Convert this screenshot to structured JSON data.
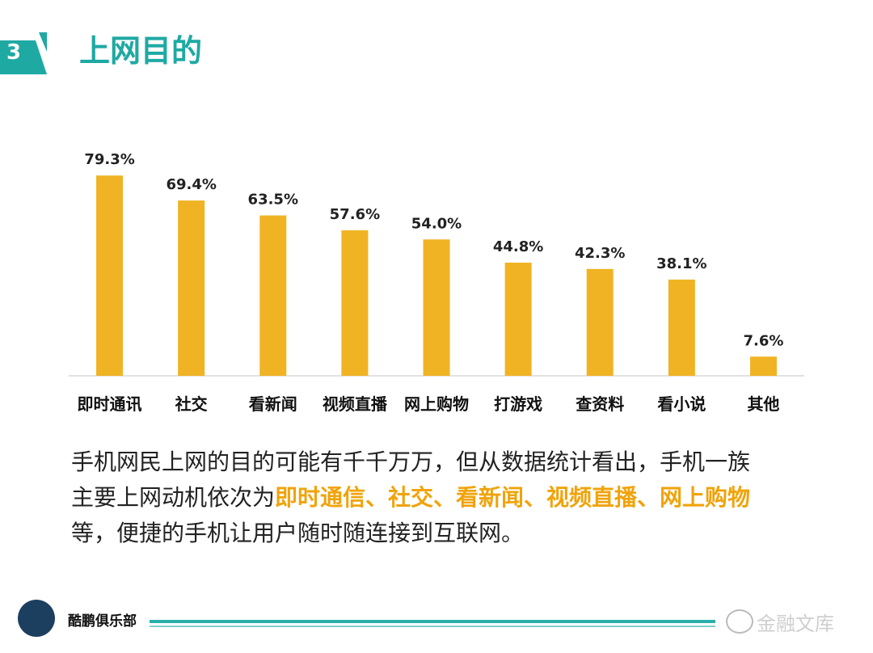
{
  "header": {
    "section_number": "3",
    "title": "上网目的"
  },
  "chart_data": {
    "type": "bar",
    "categories": [
      "即时通讯",
      "社交",
      "看新闻",
      "视频直播",
      "网上购物",
      "打游戏",
      "查资料",
      "看小说",
      "其他"
    ],
    "values": [
      79.3,
      69.4,
      63.5,
      57.6,
      54.0,
      44.8,
      42.3,
      38.1,
      7.6
    ],
    "value_labels": [
      "79.3%",
      "69.4%",
      "63.5%",
      "57.6%",
      "54.0%",
      "44.8%",
      "42.3%",
      "38.1%",
      "7.6%"
    ],
    "title": "",
    "xlabel": "",
    "ylabel": "",
    "ylim": [
      0,
      80
    ],
    "bar_color": "#f0b323",
    "grid": false
  },
  "caption": {
    "line1": "手机网民上网的目的可能有千千万万，但从数据统计看出，手机一族",
    "line2_prefix": "主要上网动机依次为",
    "line2_highlight": "即时通信、社交、看新闻、视频直播、网上购物",
    "line3": "等，便捷的手机让用户随时随连接到互联网。"
  },
  "footer": {
    "logo_text": "酷鹏俱乐部",
    "watermark": "金融文库"
  },
  "colors": {
    "accent_teal": "#1fa9a3",
    "bar": "#f0b323",
    "highlight": "#f0a30a"
  }
}
